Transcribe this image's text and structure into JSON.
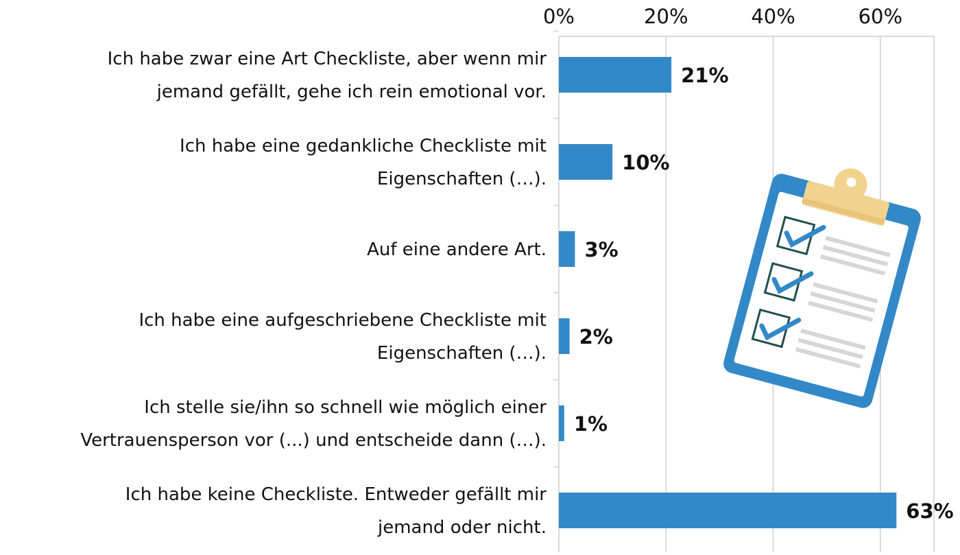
{
  "chart_data": {
    "type": "bar",
    "orientation": "horizontal",
    "categories": [
      [
        "Ich habe zwar eine Art Checkliste, aber wenn mir",
        "jemand gefällt, gehe ich rein emotional vor."
      ],
      [
        "Ich habe eine gedankliche Checkliste mit",
        "Eigenschaften (…)."
      ],
      [
        "Auf eine andere Art."
      ],
      [
        "Ich habe eine aufgeschriebene Checkliste mit",
        "Eigenschaften (…)."
      ],
      [
        "Ich stelle sie/ihn so schnell wie möglich einer",
        "Vertrauensperson vor (...) und entscheide dann (…)."
      ],
      [
        "Ich habe keine Checkliste. Entweder gefällt mir",
        "jemand oder nicht."
      ]
    ],
    "values": [
      21,
      10,
      3,
      2,
      1,
      63
    ],
    "data_labels": [
      "21%",
      "10%",
      "3%",
      "2%",
      "1%",
      "63%"
    ],
    "xlim": [
      0,
      70
    ],
    "x_ticks": [
      0,
      20,
      40,
      60
    ],
    "x_tick_labels": [
      "0%",
      "20%",
      "40%",
      "60%"
    ],
    "x_axis_position": "top",
    "grid": true,
    "bar_color": "#3388c8",
    "grid_color": "#d9d9d9",
    "illustration": "clipboard-checklist-icon",
    "illustration_colors": {
      "board": "#3388c8",
      "clip": "#f2d38e",
      "check": "#3388c8",
      "box": "#1f4f4a",
      "lines": "#d6d6d6"
    }
  }
}
